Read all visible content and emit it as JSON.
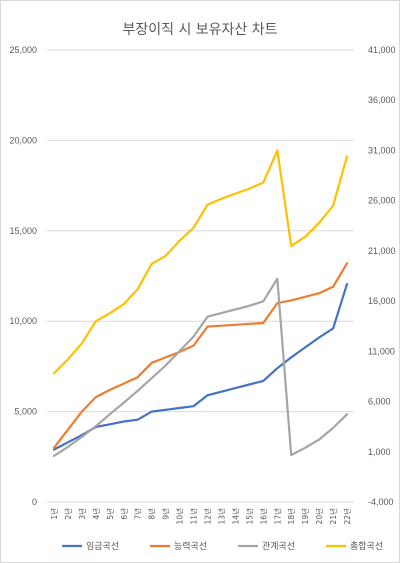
{
  "chart_data": {
    "type": "line",
    "title": "부장이직 시 보유자산 차트",
    "categories": [
      "1년",
      "2년",
      "3년",
      "4년",
      "5년",
      "6년",
      "7년",
      "8년",
      "9년",
      "10년",
      "11년",
      "12년",
      "13년",
      "14년",
      "15년",
      "16년",
      "17년",
      "18년",
      "19년",
      "20년",
      "21년",
      "22년"
    ],
    "y_left": {
      "min": 0,
      "max": 25000,
      "ticks": [
        0,
        5000,
        10000,
        15000,
        20000,
        25000
      ],
      "tick_labels": [
        "0",
        "5,000",
        "10,000",
        "15,000",
        "20,000",
        "25,000"
      ]
    },
    "y_right": {
      "min": -4000,
      "max": 41000,
      "ticks": [
        -4000,
        1000,
        6000,
        11000,
        16000,
        21000,
        26000,
        31000,
        36000,
        41000
      ],
      "tick_labels": [
        "-4,000",
        "1,000",
        "6,000",
        "11,000",
        "16,000",
        "21,000",
        "26,000",
        "31,000",
        "36,000",
        "41,000"
      ]
    },
    "grid": true,
    "legend_position": "bottom",
    "series": [
      {
        "name": "임금곡선",
        "color": "#4472C4",
        "axis": "left",
        "values": [
          2900,
          3300,
          3700,
          4150,
          4300,
          4450,
          4550,
          5000,
          5100,
          5200,
          5300,
          5900,
          6100,
          6300,
          6500,
          6700,
          7400,
          8000,
          8550,
          9100,
          9600,
          12050
        ]
      },
      {
        "name": "능력곡선",
        "color": "#ED7D31",
        "axis": "left",
        "values": [
          3000,
          4000,
          5000,
          5800,
          6200,
          6550,
          6900,
          7700,
          8000,
          8300,
          8650,
          9700,
          9750,
          9800,
          9850,
          9900,
          11000,
          11150,
          11350,
          11550,
          11900,
          13200
        ]
      },
      {
        "name": "관계곡선",
        "color": "#A5A5A5",
        "axis": "left",
        "values": [
          2550,
          3050,
          3600,
          4200,
          4850,
          5500,
          6150,
          6850,
          7550,
          8350,
          9150,
          10250,
          10450,
          10650,
          10850,
          11100,
          12350,
          2600,
          3000,
          3450,
          4100,
          4850
        ]
      },
      {
        "name": "총합곡선",
        "color": "#FFC000",
        "axis": "right",
        "values": [
          8800,
          10200,
          11800,
          14000,
          14800,
          15700,
          17200,
          19700,
          20500,
          22000,
          23300,
          25600,
          26200,
          26700,
          27200,
          27800,
          31000,
          21500,
          22400,
          23800,
          25500,
          30400
        ]
      }
    ]
  }
}
